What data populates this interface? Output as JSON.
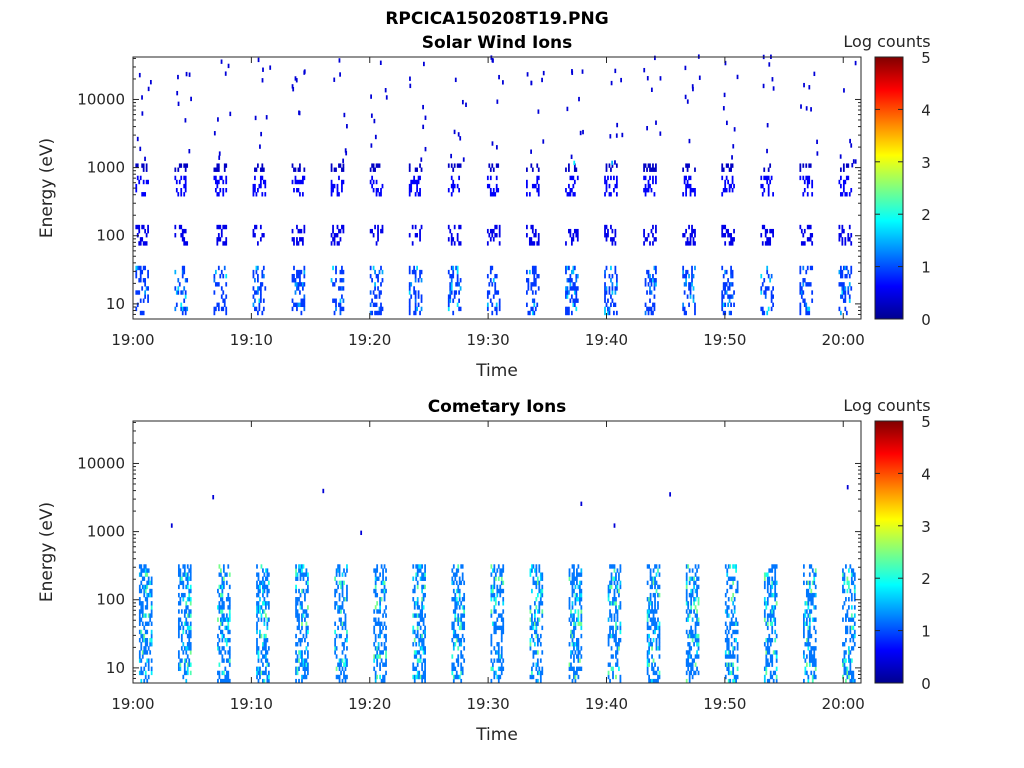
{
  "figure": {
    "title": "RPCICA150208T19.PNG"
  },
  "colorbar_colors": [
    "#00008f",
    "#0000ff",
    "#0080ff",
    "#00ffff",
    "#80ff80",
    "#ffff00",
    "#ff8000",
    "#ff0000",
    "#800000"
  ],
  "chart_data": [
    {
      "type": "heatmap",
      "title": "Solar Wind Ions",
      "xlabel": "Time",
      "ylabel": "Energy (eV)",
      "x_ticks": [
        "19:00",
        "19:10",
        "19:20",
        "19:30",
        "19:40",
        "19:50",
        "20:00"
      ],
      "x_range": [
        "19:00",
        "20:01.5"
      ],
      "y_scale": "log",
      "y_ticks": [
        10,
        100,
        1000,
        10000
      ],
      "y_tick_labels": [
        "10",
        "100",
        "1000",
        "10000"
      ],
      "y_range": [
        6,
        42000
      ],
      "colorbar": {
        "label": "Log counts",
        "min": 0,
        "max": 5,
        "ticks": [
          "0",
          "1",
          "2",
          "3",
          "4",
          "5"
        ]
      },
      "pattern": {
        "period_min": 3.3,
        "first_burst_min": 0.2,
        "bursts": [
          {
            "energy_eV": [
              7,
              35
            ],
            "log_counts": 0.9,
            "peak": 1.8
          },
          {
            "energy_eV": [
              80,
              130
            ],
            "log_counts": 0.5
          },
          {
            "energy_eV": [
              400,
              700
            ],
            "log_counts": 0.6
          },
          {
            "energy_eV": [
              1000,
              1100
            ],
            "log_counts": 0.3
          }
        ],
        "highlights": [
          {
            "time_min": 37.2,
            "energy_eV": 1100,
            "log_counts": 1.8
          },
          {
            "time_min": 40.4,
            "energy_eV": 1100,
            "log_counts": 1.5
          }
        ]
      }
    },
    {
      "type": "heatmap",
      "title": "Cometary Ions",
      "xlabel": "Time",
      "ylabel": "Energy (eV)",
      "x_ticks": [
        "19:00",
        "19:10",
        "19:20",
        "19:30",
        "19:40",
        "19:50",
        "20:00"
      ],
      "x_range": [
        "19:00",
        "20:01.5"
      ],
      "y_scale": "log",
      "y_ticks": [
        10,
        100,
        1000,
        10000
      ],
      "y_tick_labels": [
        "10",
        "100",
        "1000",
        "10000"
      ],
      "y_range": [
        6,
        42000
      ],
      "colorbar": {
        "label": "Log counts",
        "min": 0,
        "max": 5,
        "ticks": [
          "0",
          "1",
          "2",
          "3",
          "4",
          "5"
        ]
      },
      "pattern": {
        "period_min": 3.3,
        "first_burst_min": 0.5,
        "bursts": [
          {
            "energy_eV": [
              6,
              300
            ],
            "log_counts": 1.2,
            "peak": 2.5
          }
        ],
        "sparse_points": [
          {
            "time_min": 3.2,
            "energy_eV": 1150
          },
          {
            "time_min": 6.7,
            "energy_eV": 3000
          },
          {
            "time_min": 16.0,
            "energy_eV": 3700
          },
          {
            "time_min": 19.2,
            "energy_eV": 900
          },
          {
            "time_min": 37.8,
            "energy_eV": 2400
          },
          {
            "time_min": 40.6,
            "energy_eV": 1150
          },
          {
            "time_min": 45.3,
            "energy_eV": 3300
          },
          {
            "time_min": 60.3,
            "energy_eV": 4200
          }
        ]
      }
    }
  ]
}
